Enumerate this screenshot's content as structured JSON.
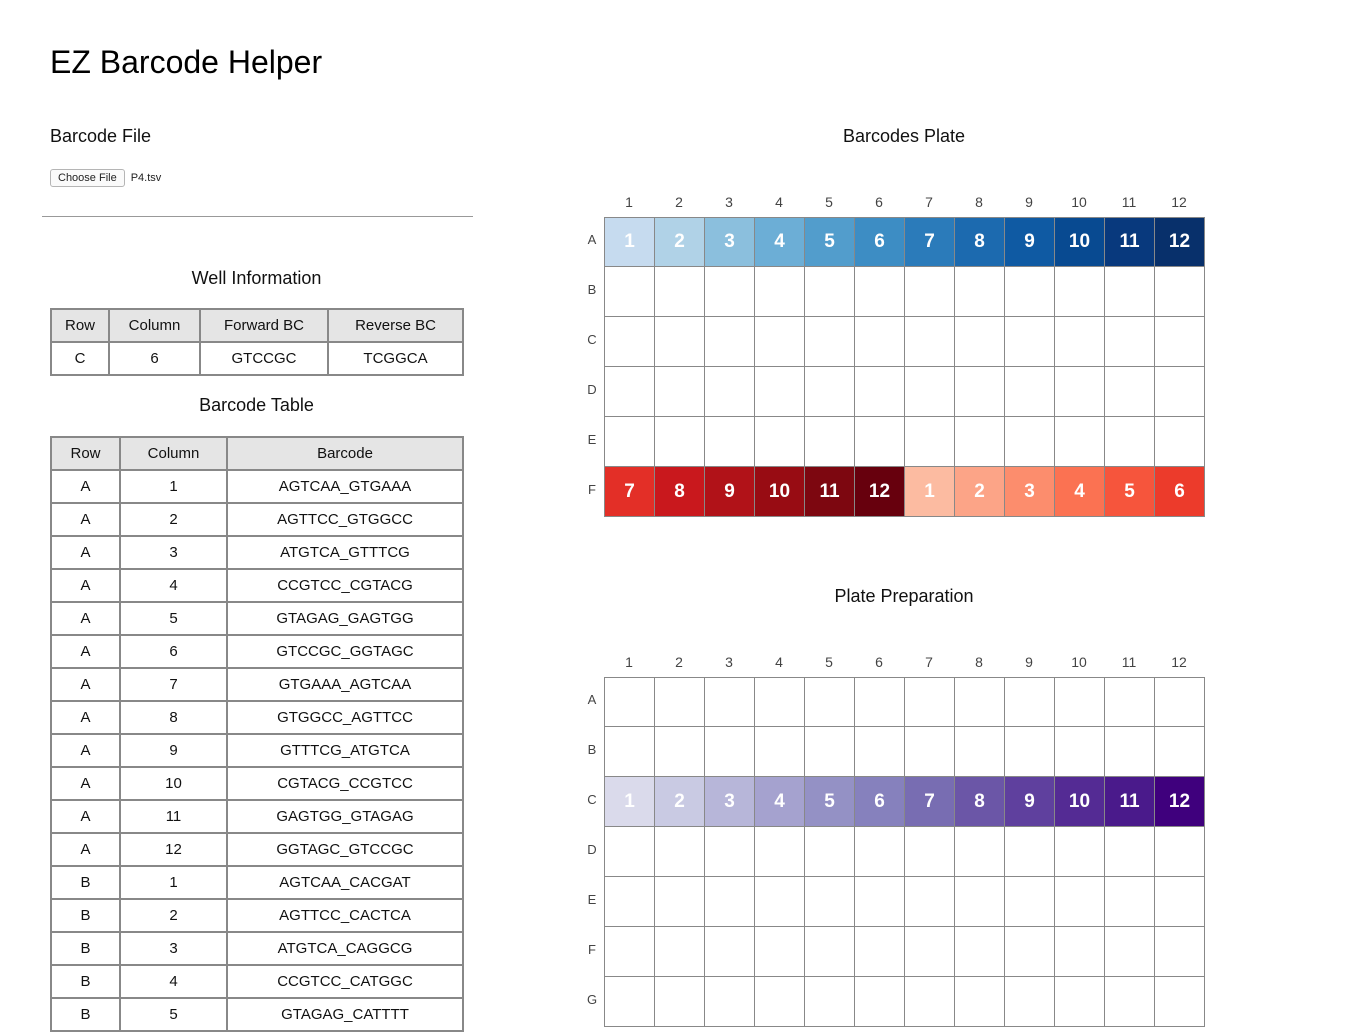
{
  "app_title": "EZ Barcode Helper",
  "barcode_file": {
    "title": "Barcode File",
    "button_label": "Choose File",
    "file_name": "P4.tsv"
  },
  "well_information": {
    "title": "Well Information",
    "headers": [
      "Row",
      "Column",
      "Forward BC",
      "Reverse BC"
    ],
    "row": [
      "C",
      "6",
      "GTCCGC",
      "TCGGCA"
    ]
  },
  "barcode_table": {
    "title": "Barcode Table",
    "headers": [
      "Row",
      "Column",
      "Barcode"
    ],
    "rows": [
      [
        "A",
        "1",
        "AGTCAA_GTGAAA"
      ],
      [
        "A",
        "2",
        "AGTTCC_GTGGCC"
      ],
      [
        "A",
        "3",
        "ATGTCA_GTTTCG"
      ],
      [
        "A",
        "4",
        "CCGTCC_CGTACG"
      ],
      [
        "A",
        "5",
        "GTAGAG_GAGTGG"
      ],
      [
        "A",
        "6",
        "GTCCGC_GGTAGC"
      ],
      [
        "A",
        "7",
        "GTGAAA_AGTCAA"
      ],
      [
        "A",
        "8",
        "GTGGCC_AGTTCC"
      ],
      [
        "A",
        "9",
        "GTTTCG_ATGTCA"
      ],
      [
        "A",
        "10",
        "CGTACG_CCGTCC"
      ],
      [
        "A",
        "11",
        "GAGTGG_GTAGAG"
      ],
      [
        "A",
        "12",
        "GGTAGC_GTCCGC"
      ],
      [
        "B",
        "1",
        "AGTCAA_CACGAT"
      ],
      [
        "B",
        "2",
        "AGTTCC_CACTCA"
      ],
      [
        "B",
        "3",
        "ATGTCA_CAGGCG"
      ],
      [
        "B",
        "4",
        "CCGTCC_CATGGC"
      ],
      [
        "B",
        "5",
        "GTAGAG_CATTTT"
      ]
    ]
  },
  "barcodes_plate": {
    "title": "Barcodes Plate",
    "columns": [
      "1",
      "2",
      "3",
      "4",
      "5",
      "6",
      "7",
      "8",
      "9",
      "10",
      "11",
      "12"
    ],
    "rows": [
      "A",
      "B",
      "C",
      "D",
      "E",
      "F"
    ],
    "wells": {
      "A": {
        "labels": [
          "1",
          "2",
          "3",
          "4",
          "5",
          "6",
          "7",
          "8",
          "9",
          "10",
          "11",
          "12"
        ],
        "colors": [
          "#c6dbef",
          "#b0d2e7",
          "#8bbfdd",
          "#6caed6",
          "#529dcc",
          "#3d8dc4",
          "#2b7bba",
          "#1c6aaf",
          "#0f5aa3",
          "#084a91",
          "#08397d",
          "#08306b"
        ]
      },
      "F": {
        "labels": [
          "7",
          "8",
          "9",
          "10",
          "11",
          "12",
          "1",
          "2",
          "3",
          "4",
          "5",
          "6"
        ],
        "colors": [
          "#e32f27",
          "#c9181d",
          "#b11218",
          "#980c13",
          "#7d0710",
          "#67000d",
          "#fcbba1",
          "#fca487",
          "#fc8d6d",
          "#fb7252",
          "#f6553c",
          "#ec3b2b"
        ]
      }
    }
  },
  "plate_preparation": {
    "title": "Plate Preparation",
    "columns": [
      "1",
      "2",
      "3",
      "4",
      "5",
      "6",
      "7",
      "8",
      "9",
      "10",
      "11",
      "12"
    ],
    "rows": [
      "A",
      "B",
      "C",
      "D",
      "E",
      "F",
      "G"
    ],
    "wells": {
      "C": {
        "labels": [
          "1",
          "2",
          "3",
          "4",
          "5",
          "6",
          "7",
          "8",
          "9",
          "10",
          "11",
          "12"
        ],
        "colors": [
          "#dadaeb",
          "#c9cae3",
          "#b7b6d9",
          "#a5a2cf",
          "#9491c5",
          "#8681bd",
          "#786db2",
          "#6b56a7",
          "#5f409e",
          "#542b94",
          "#4a1a8b",
          "#3f007d"
        ]
      }
    }
  }
}
